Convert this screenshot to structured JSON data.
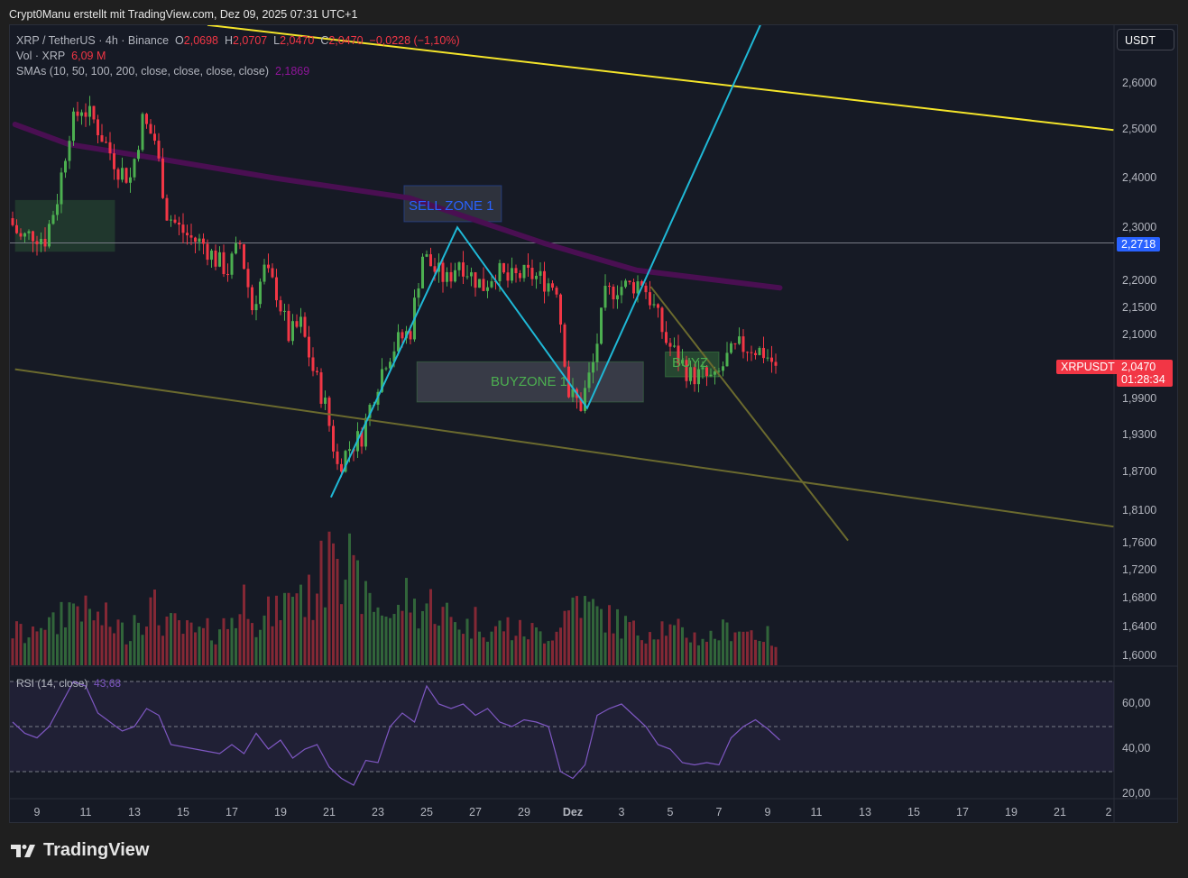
{
  "credit": "Crypt0Manu erstellt mit TradingView.com, Dez 09, 2025 07:31 UTC+1",
  "legend": {
    "symbol": "XRP / TetherUS · 4h · Binance",
    "o_label": "O",
    "o": "2,0698",
    "h_label": "H",
    "h": "2,0707",
    "l_label": "L",
    "l": "2,0470",
    "c_label": "C",
    "c": "2,0470",
    "change": "−0,0228 (−1,10%)",
    "vol_label": "Vol · XRP",
    "vol": "6,09 M",
    "sma_label": "SMAs (10, 50, 100, 200, close, close, close, close)",
    "sma": "2,1869",
    "rsi_label": "RSI (14, close)",
    "rsi": "43,68"
  },
  "currency_button": "USDT",
  "price_ticks": [
    "2,6000",
    "2,5000",
    "2,4000",
    "2,3000",
    "2,2000",
    "2,1500",
    "2,1000",
    "1,9900",
    "1,9300",
    "1,8700",
    "1,8100",
    "1,7600",
    "1,7200",
    "1,6800",
    "1,6400",
    "1,6000"
  ],
  "rsi_ticks": [
    "60,00",
    "40,00",
    "20,00"
  ],
  "date_ticks": [
    "9",
    "11",
    "13",
    "15",
    "17",
    "19",
    "21",
    "23",
    "25",
    "27",
    "29",
    "Dez",
    "3",
    "5",
    "7",
    "9",
    "11",
    "13",
    "15",
    "17",
    "19",
    "21",
    "2"
  ],
  "tags": {
    "hline_price": "2,2718",
    "symbol_tag": "XRPUSDT",
    "last_price": "2,0470",
    "countdown": "01:28:34"
  },
  "zones": {
    "sell": "SELL ZONE 1",
    "buy": "BUYZONE 1",
    "buy2": "BUYZ"
  },
  "colors": {
    "up": "#4caf50",
    "down": "#f23645",
    "sma": "#4a0f52",
    "rsi": "#7e57c2",
    "accent": "#2962ff",
    "trend_yellow": "#f5e52a",
    "trend_olive": "#6b6a2e",
    "zigzag": "#1fb8d6"
  },
  "chart_data": {
    "type": "candlestick",
    "interval": "4h",
    "scale": "log",
    "closes_12h": {
      "start_day": "Nov 8",
      "values": [
        2.32,
        2.28,
        2.29,
        2.28,
        2.36,
        2.5,
        2.55,
        2.52,
        2.47,
        2.42,
        2.4,
        2.52,
        2.48,
        2.33,
        2.3,
        2.28,
        2.27,
        2.24,
        2.22,
        2.27,
        2.15,
        2.22,
        2.18,
        2.1,
        2.12,
        2.04,
        1.98,
        1.88,
        1.91,
        1.93,
        2.0,
        2.06,
        2.09,
        2.11,
        2.25,
        2.22,
        2.2,
        2.24,
        2.21,
        2.19,
        2.22,
        2.2,
        2.21,
        2.21,
        2.2,
        2.19,
        2.0,
        1.98,
        2.05,
        2.17,
        2.19,
        2.19,
        2.2,
        2.15,
        2.09,
        2.06,
        2.03,
        2.03,
        2.02,
        2.06,
        2.08,
        2.08,
        2.07,
        2.047
      ]
    },
    "volume_12h_relative": [
      30,
      25,
      40,
      35,
      50,
      55,
      45,
      40,
      35,
      30,
      45,
      50,
      40,
      35,
      30,
      28,
      30,
      35,
      45,
      60,
      40,
      45,
      55,
      70,
      60,
      80,
      140,
      90,
      70,
      55,
      50,
      45,
      60,
      50,
      55,
      45,
      40,
      35,
      40,
      30,
      35,
      30,
      30,
      28,
      30,
      45,
      60,
      50,
      45,
      40,
      35,
      30,
      32,
      35,
      30,
      28,
      25,
      25,
      30,
      35,
      30,
      28,
      25,
      20
    ],
    "rsi_12h": [
      52,
      47,
      45,
      50,
      60,
      70,
      68,
      56,
      52,
      48,
      50,
      58,
      55,
      42,
      41,
      40,
      39,
      38,
      42,
      38,
      47,
      40,
      44,
      36,
      40,
      42,
      32,
      27,
      24,
      35,
      34,
      50,
      56,
      52,
      68,
      60,
      58,
      60,
      55,
      58,
      52,
      50,
      53,
      52,
      50,
      30,
      27,
      33,
      55,
      58,
      60,
      55,
      50,
      42,
      40,
      34,
      33,
      34,
      33,
      45,
      50,
      53,
      49,
      44
    ],
    "sma200": [
      [
        8.1,
        2.512
      ],
      [
        10.3,
        2.47
      ],
      [
        14.0,
        2.44
      ],
      [
        18.8,
        2.4
      ],
      [
        24.3,
        2.36
      ],
      [
        29.9,
        2.27
      ],
      [
        33.6,
        2.22
      ],
      [
        39.5,
        2.1869
      ]
    ],
    "horizontal_line": 2.2718,
    "trendlines": {
      "yellow": [
        [
          16.0,
          2.733
        ],
        [
          53.2,
          2.5
        ]
      ],
      "olive_long": [
        [
          8.1,
          2.041
        ],
        [
          53.2,
          1.786
        ]
      ],
      "olive_down": [
        [
          34.2,
          2.189
        ],
        [
          42.3,
          1.765
        ]
      ],
      "zigzag": [
        [
          21.07,
          1.831
        ],
        [
          26.26,
          2.302
        ],
        [
          31.59,
          1.975
        ],
        [
          38.7,
          2.733
        ]
      ]
    },
    "zone_boxes": {
      "green_left": [
        [
          8.1,
          2.356
        ],
        [
          12.2,
          2.255
        ]
      ],
      "sell": [
        [
          24.07,
          2.385
        ],
        [
          28.07,
          2.313
        ]
      ],
      "buy": [
        [
          24.6,
          2.054
        ],
        [
          33.9,
          1.985
        ]
      ],
      "buy2": [
        [
          34.8,
          2.071
        ],
        [
          37.0,
          2.028
        ]
      ]
    },
    "rsi_bands": [
      70,
      50,
      30
    ]
  }
}
